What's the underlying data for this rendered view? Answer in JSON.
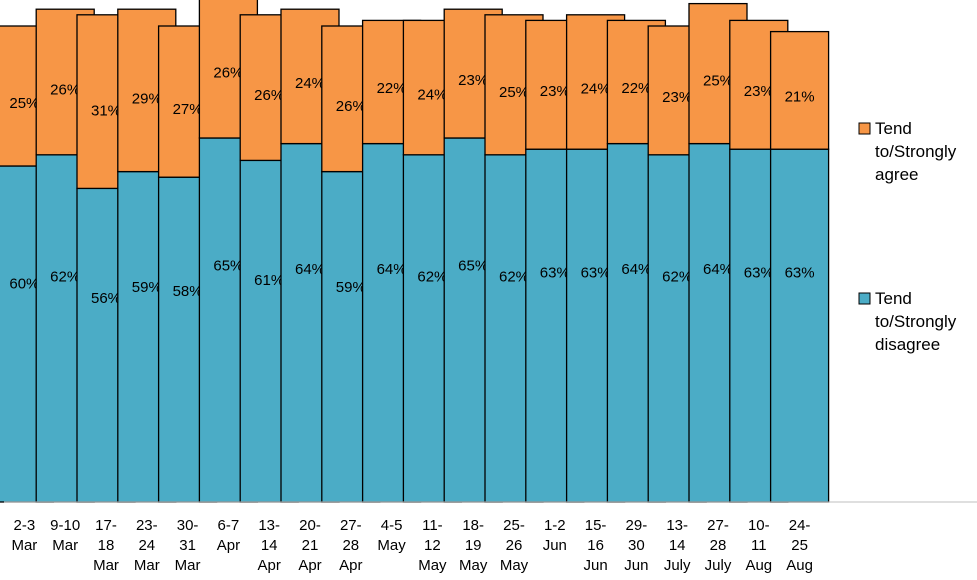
{
  "chart_data": {
    "type": "bar",
    "stacked": true,
    "categories": [
      [
        "2-3",
        "Mar"
      ],
      [
        "9-10",
        "Mar"
      ],
      [
        "17-",
        "18",
        "Mar"
      ],
      [
        "23-",
        "24",
        "Mar"
      ],
      [
        "30-",
        "31",
        "Mar"
      ],
      [
        "6-7",
        "Apr"
      ],
      [
        "13-",
        "14",
        "Apr"
      ],
      [
        "20-",
        "21",
        "Apr"
      ],
      [
        "27-",
        "28",
        "Apr"
      ],
      [
        "4-5",
        "May"
      ],
      [
        "11-",
        "12",
        "May"
      ],
      [
        "18-",
        "19",
        "May"
      ],
      [
        "25-",
        "26",
        "May"
      ],
      [
        "1-2",
        "Jun"
      ],
      [
        "15-",
        "16",
        "Jun"
      ],
      [
        "29-",
        "30",
        "Jun"
      ],
      [
        "13-",
        "14",
        "July"
      ],
      [
        "27-",
        "28",
        "July"
      ],
      [
        "10-",
        "11",
        "Aug"
      ],
      [
        "24-",
        "25",
        "Aug"
      ]
    ],
    "series": [
      {
        "name": "Tend to/Strongly disagree",
        "legend_lines": [
          "Tend",
          "to/Strongly",
          "disagree"
        ],
        "color": "#4BACC6",
        "values": [
          60,
          62,
          56,
          59,
          58,
          65,
          61,
          64,
          59,
          64,
          62,
          65,
          62,
          63,
          63,
          64,
          62,
          64,
          63,
          63
        ]
      },
      {
        "name": "Tend to/Strongly agree",
        "legend_lines": [
          "Tend",
          "to/Strongly",
          "agree"
        ],
        "color": "#F79646",
        "values": [
          25,
          26,
          31,
          29,
          27,
          26,
          26,
          24,
          26,
          22,
          24,
          23,
          25,
          23,
          24,
          22,
          23,
          25,
          23,
          21
        ]
      }
    ],
    "value_suffix": "%",
    "ylim": [
      0,
      90
    ],
    "grid": false,
    "legend_position": "right",
    "title": "",
    "xlabel": "",
    "ylabel": ""
  }
}
